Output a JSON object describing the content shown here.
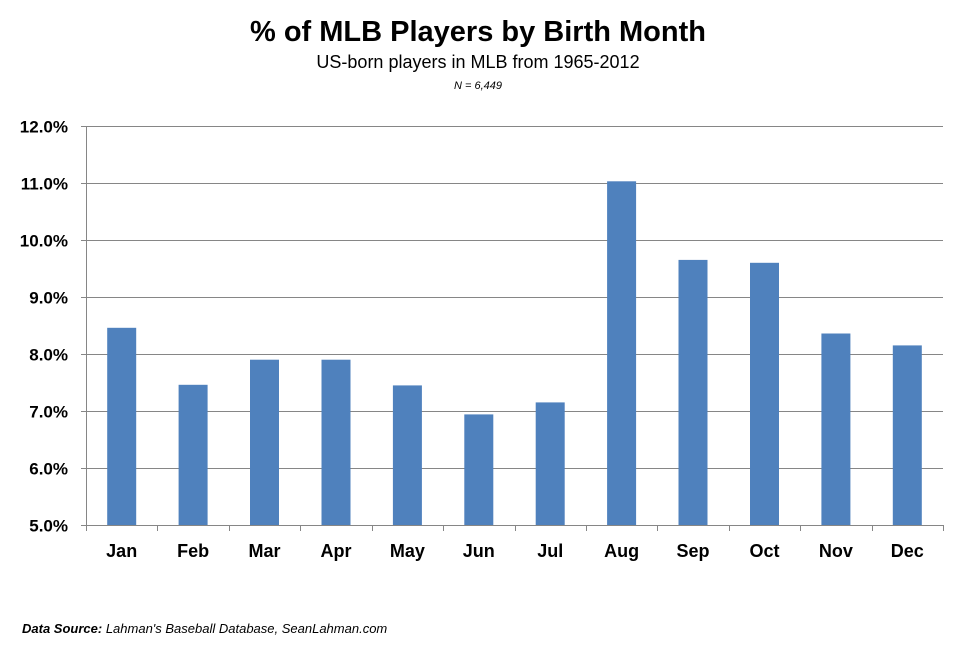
{
  "chart_data": {
    "type": "bar",
    "title": "% of MLB Players by Birth Month",
    "subtitle": "US-born players in MLB from 1965-2012",
    "note": "N = 6,449",
    "categories": [
      "Jan",
      "Feb",
      "Mar",
      "Apr",
      "May",
      "Jun",
      "Jul",
      "Aug",
      "Sep",
      "Oct",
      "Nov",
      "Dec"
    ],
    "values": [
      8.46,
      7.46,
      7.9,
      7.9,
      7.45,
      6.94,
      7.15,
      11.03,
      9.65,
      9.6,
      8.36,
      8.15
    ],
    "ylim": [
      5.0,
      12.0
    ],
    "yticks": [
      "5.0%",
      "6.0%",
      "7.0%",
      "8.0%",
      "9.0%",
      "10.0%",
      "11.0%",
      "12.0%"
    ],
    "ytick_values": [
      5,
      6,
      7,
      8,
      9,
      10,
      11,
      12
    ],
    "xlabel": "",
    "ylabel": "",
    "grid": true,
    "legend": "none",
    "bar_color": "#4f81bd",
    "grid_color": "#868686"
  },
  "source": {
    "label": "Data Source:",
    "text": " Lahman's Baseball Database, SeanLahman.com"
  }
}
